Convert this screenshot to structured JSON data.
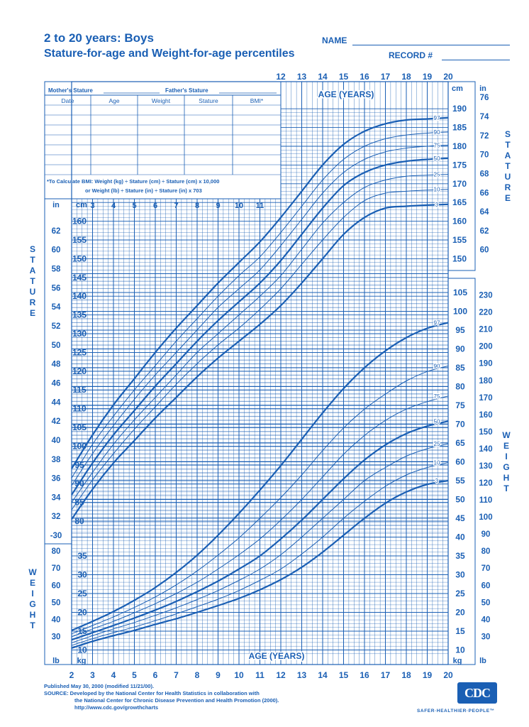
{
  "header": {
    "title_line1": "2 to 20 years: Boys",
    "title_line2": "Stature-for-age and Weight-for-age percentiles",
    "name_label": "NAME",
    "record_label": "RECORD #"
  },
  "record_table": {
    "mother_label": "Mother's Stature",
    "father_label": "Father's Stature",
    "columns": [
      "Date",
      "Age",
      "Weight",
      "Stature",
      "BMI*"
    ],
    "bmi_note_line1": "*To Calculate BMI: Weight (kg) ÷ Stature (cm) ÷ Stature (cm) x 10,000",
    "bmi_note_line2": "or Weight (lb) ÷ Stature (in) ÷ Stature (in) x 703"
  },
  "labels": {
    "age_years": "AGE (YEARS)",
    "cm": "cm",
    "in": "in",
    "kg": "kg",
    "lb": "lb",
    "stature_vertical": "STATURE",
    "weight_vertical": "WEIGHT"
  },
  "footer": {
    "published": "Published May 30, 2000 (modified 11/21/00).",
    "source_line1": "SOURCE: Developed by the National Center for Health Statistics in collaboration with",
    "source_line2": "the National Center for Chronic Disease Prevention and Health Promotion (2000).",
    "url": "http://www.cdc.gov/growthcharts",
    "logo_text": "CDC",
    "tagline": "SAFER·HEALTHIER·PEOPLE™"
  },
  "colors": {
    "primary": "#1a5fb4",
    "background": "#ffffff"
  },
  "chart_data": [
    {
      "type": "line",
      "title": "Stature-for-age percentiles",
      "xlabel": "AGE (YEARS)",
      "ylabel": "cm",
      "x": [
        2,
        3,
        4,
        5,
        6,
        7,
        8,
        9,
        10,
        11,
        12,
        13,
        14,
        15,
        16,
        17,
        18,
        19,
        20
      ],
      "xlim": [
        2,
        20
      ],
      "ylim": [
        77,
        190
      ],
      "x_ticks_bottom": [
        "2",
        "3",
        "4",
        "5",
        "6",
        "7",
        "8",
        "9",
        "10",
        "11",
        "12",
        "13",
        "14",
        "15",
        "16",
        "17",
        "18",
        "19",
        "20"
      ],
      "x_ticks_top": [
        "12",
        "13",
        "14",
        "15",
        "16",
        "17",
        "18",
        "19",
        "20"
      ],
      "x_ticks_mid": [
        "3",
        "4",
        "5",
        "6",
        "7",
        "8",
        "9",
        "10",
        "11"
      ],
      "y_ticks_cm_left": [
        "80",
        "85",
        "90",
        "95",
        "100",
        "105",
        "110",
        "115",
        "120",
        "125",
        "130",
        "135",
        "140",
        "145",
        "150",
        "155",
        "160"
      ],
      "y_ticks_in_left": [
        "-30",
        "32",
        "34",
        "36",
        "38",
        "40",
        "42",
        "44",
        "46",
        "48",
        "50",
        "52",
        "54",
        "56",
        "58",
        "60",
        "62"
      ],
      "y_ticks_cm_right": [
        "150",
        "155",
        "160",
        "165",
        "170",
        "175",
        "180",
        "185",
        "190"
      ],
      "y_ticks_in_right": [
        "60",
        "62",
        "64",
        "66",
        "68",
        "70",
        "72",
        "74",
        "76"
      ],
      "series": [
        {
          "name": "3",
          "values": [
            80.5,
            88.5,
            95.5,
            101.5,
            107.5,
            113,
            118.5,
            123.5,
            128,
            132.5,
            137.5,
            143.5,
            150,
            156.5,
            161,
            163.5,
            164,
            164.3,
            164.5
          ]
        },
        {
          "name": "10",
          "values": [
            83,
            91,
            98,
            104.5,
            110.5,
            116.5,
            122,
            127,
            131.5,
            136.5,
            142,
            148.5,
            155,
            161,
            165.5,
            167.5,
            168,
            168.3,
            168.5
          ]
        },
        {
          "name": "25",
          "values": [
            85,
            93,
            100.5,
            107,
            113,
            119,
            125,
            130,
            135,
            140,
            145.5,
            152.5,
            159.5,
            165,
            169,
            171,
            172,
            172.3,
            172.5
          ]
        },
        {
          "name": "50",
          "values": [
            87,
            95.5,
            103,
            109.5,
            116,
            122,
            128,
            133.5,
            138.5,
            143.5,
            149.5,
            156.5,
            163.5,
            169.5,
            173,
            175,
            176,
            176.5,
            176.8
          ]
        },
        {
          "name": "75",
          "values": [
            89.5,
            98,
            105.5,
            112.5,
            119,
            125,
            131,
            137,
            142,
            147,
            153.5,
            160.5,
            167.5,
            173,
            176.5,
            178.5,
            179.5,
            180,
            180.3
          ]
        },
        {
          "name": "90",
          "values": [
            91.5,
            100.5,
            108,
            115,
            121.5,
            128,
            134,
            140,
            145.5,
            150.5,
            157,
            164,
            171,
            176.5,
            180,
            182,
            183,
            183.5,
            183.8
          ]
        },
        {
          "name": "97",
          "values": [
            94,
            103,
            111,
            118,
            125,
            131.5,
            137.5,
            143.5,
            149,
            154.5,
            161,
            168,
            175,
            180.5,
            184,
            186,
            187,
            187.3,
            187.6
          ]
        }
      ]
    },
    {
      "type": "line",
      "title": "Weight-for-age percentiles",
      "xlabel": "AGE (YEARS)",
      "ylabel": "kg",
      "x": [
        2,
        3,
        4,
        5,
        6,
        7,
        8,
        9,
        10,
        11,
        12,
        13,
        14,
        15,
        16,
        17,
        18,
        19,
        20
      ],
      "xlim": [
        2,
        20
      ],
      "ylim": [
        9,
        112
      ],
      "y_ticks_kg_left": [
        "10",
        "15",
        "20",
        "25",
        "30",
        "35"
      ],
      "y_ticks_lb_left": [
        "30",
        "40",
        "50",
        "60",
        "70",
        "80"
      ],
      "y_ticks_kg_right": [
        "10",
        "15",
        "20",
        "25",
        "30",
        "35",
        "40",
        "45",
        "50",
        "55",
        "60",
        "65",
        "70",
        "75",
        "80",
        "85",
        "90",
        "95",
        "100",
        "105"
      ],
      "y_ticks_lb_right": [
        "30",
        "40",
        "50",
        "60",
        "70",
        "80",
        "90",
        "100",
        "110",
        "120",
        "130",
        "140",
        "150",
        "160",
        "170",
        "180",
        "190",
        "200",
        "210",
        "220",
        "230"
      ],
      "series": [
        {
          "name": "3",
          "values": [
            10.5,
            12.3,
            13.8,
            15.2,
            16.8,
            18.3,
            20,
            21.8,
            23.7,
            26,
            28.7,
            32,
            36,
            40.5,
            45,
            49,
            52,
            54,
            55
          ]
        },
        {
          "name": "10",
          "values": [
            11.2,
            13,
            14.6,
            16.1,
            17.8,
            19.6,
            21.5,
            23.5,
            25.8,
            28.5,
            31.5,
            35.5,
            40,
            45,
            49.5,
            53.5,
            56.5,
            58.5,
            59.8
          ]
        },
        {
          "name": "25",
          "values": [
            11.9,
            13.8,
            15.6,
            17.3,
            19.2,
            21.2,
            23.4,
            25.8,
            28.5,
            31.5,
            35.3,
            40,
            45,
            50,
            55,
            58.5,
            61.5,
            63.5,
            64.8
          ]
        },
        {
          "name": "50",
          "values": [
            12.7,
            14.6,
            16.5,
            18.5,
            20.6,
            22.9,
            25.5,
            28.3,
            31.5,
            35,
            39.5,
            44.5,
            50,
            55.5,
            60.5,
            64.5,
            67.5,
            69.5,
            70.8
          ]
        },
        {
          "name": "75",
          "values": [
            13.5,
            15.6,
            17.6,
            19.9,
            22.3,
            25,
            28,
            31.5,
            35.3,
            39.5,
            44.5,
            50,
            56,
            62,
            67,
            71,
            74,
            76,
            77.5
          ]
        },
        {
          "name": "90",
          "values": [
            14.3,
            16.5,
            18.8,
            21.3,
            24.1,
            27.3,
            31,
            35.2,
            39.8,
            45,
            50.5,
            56.5,
            63,
            69,
            74,
            78,
            81.5,
            84,
            85.5
          ]
        },
        {
          "name": "97",
          "values": [
            15.2,
            17.6,
            20.2,
            23.2,
            26.6,
            30.6,
            35.2,
            40.5,
            46.3,
            52.5,
            59,
            66,
            73,
            79.5,
            85,
            89.5,
            93,
            95.5,
            97
          ]
        }
      ]
    }
  ]
}
